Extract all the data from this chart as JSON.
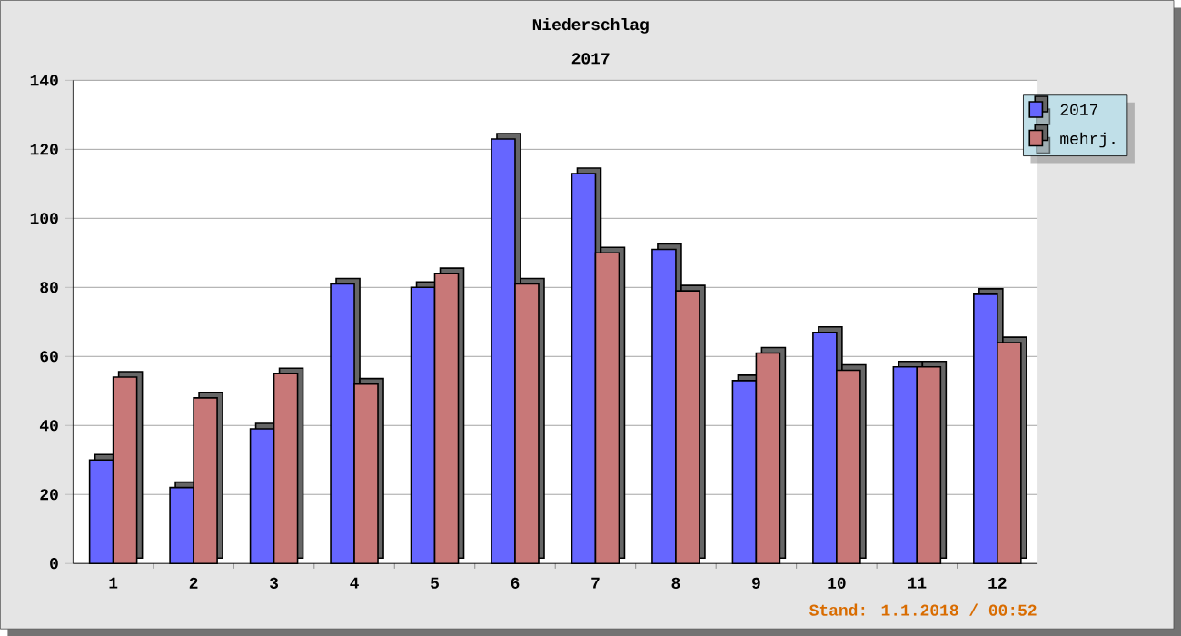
{
  "chart_data": {
    "type": "bar",
    "title": "Niederschlag",
    "subtitle": "2017",
    "categories": [
      "1",
      "2",
      "3",
      "4",
      "5",
      "6",
      "7",
      "8",
      "9",
      "10",
      "11",
      "12"
    ],
    "series": [
      {
        "name": "2017",
        "color": "#6666ff",
        "values": [
          30,
          22,
          39,
          81,
          80,
          123,
          113,
          91,
          53,
          67,
          57,
          78
        ]
      },
      {
        "name": "mehrj.",
        "color": "#c87878",
        "values": [
          54,
          48,
          55,
          52,
          84,
          81,
          90,
          79,
          61,
          56,
          57,
          64
        ]
      }
    ],
    "ylim": [
      0,
      140
    ],
    "yticks": [
      0,
      20,
      40,
      60,
      80,
      100,
      120,
      140
    ],
    "grid": "y",
    "legend": "top right",
    "annotations": [
      "Stand: 1.1.2018 / 00:52"
    ]
  }
}
